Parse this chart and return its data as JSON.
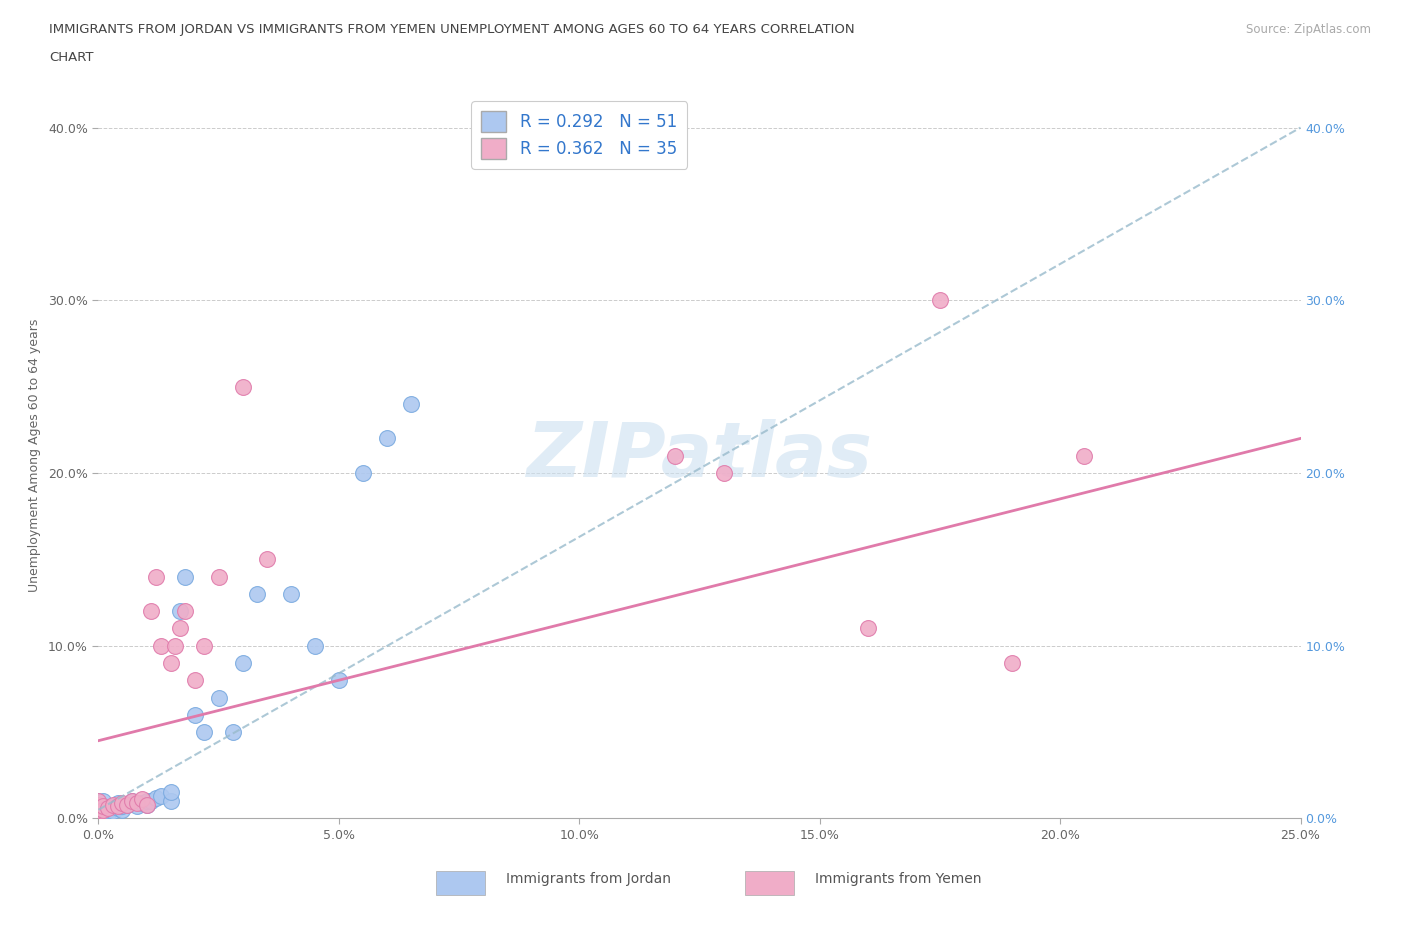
{
  "title_line1": "IMMIGRANTS FROM JORDAN VS IMMIGRANTS FROM YEMEN UNEMPLOYMENT AMONG AGES 60 TO 64 YEARS CORRELATION",
  "title_line2": "CHART",
  "source": "Source: ZipAtlas.com",
  "ylabel": "Unemployment Among Ages 60 to 64 years",
  "xlim": [
    0.0,
    0.25
  ],
  "ylim": [
    0.0,
    0.42
  ],
  "xticks": [
    0.0,
    0.05,
    0.1,
    0.15,
    0.2,
    0.25
  ],
  "xticklabels": [
    "0.0%",
    "5.0%",
    "10.0%",
    "15.0%",
    "20.0%",
    "25.0%"
  ],
  "yticks": [
    0.0,
    0.1,
    0.2,
    0.3,
    0.4
  ],
  "yticklabels": [
    "0.0%",
    "10.0%",
    "20.0%",
    "30.0%",
    "40.0%"
  ],
  "jordan_color": "#adc8f0",
  "jordan_edge": "#7aaae0",
  "jordan_R": 0.292,
  "jordan_N": 51,
  "jordan_line_color": "#7aaae0",
  "yemen_color": "#f0adc8",
  "yemen_edge": "#e07aaa",
  "yemen_R": 0.362,
  "yemen_N": 35,
  "yemen_line_color": "#e07aaa",
  "watermark": "ZIPatlas",
  "background_color": "#ffffff",
  "right_axis_color": "#5599dd",
  "jordan_line_intercept": 0.005,
  "jordan_line_slope": 1.58,
  "yemen_line_intercept": 0.045,
  "yemen_line_slope": 0.7,
  "jordan_x": [
    0.0,
    0.0,
    0.0,
    0.0,
    0.0,
    0.0,
    0.0,
    0.0,
    0.0,
    0.0,
    0.0,
    0.0,
    0.0,
    0.0,
    0.0,
    0.001,
    0.001,
    0.001,
    0.002,
    0.002,
    0.003,
    0.003,
    0.004,
    0.004,
    0.005,
    0.005,
    0.006,
    0.007,
    0.008,
    0.009,
    0.01,
    0.01,
    0.011,
    0.012,
    0.013,
    0.015,
    0.015,
    0.017,
    0.018,
    0.02,
    0.022,
    0.025,
    0.028,
    0.03,
    0.033,
    0.04,
    0.045,
    0.05,
    0.055,
    0.06,
    0.065
  ],
  "jordan_y": [
    0.0,
    0.0,
    0.0,
    0.0,
    0.0,
    0.0,
    0.001,
    0.002,
    0.003,
    0.004,
    0.005,
    0.006,
    0.007,
    0.008,
    0.01,
    0.005,
    0.007,
    0.01,
    0.003,
    0.005,
    0.004,
    0.007,
    0.006,
    0.009,
    0.005,
    0.007,
    0.008,
    0.01,
    0.007,
    0.009,
    0.008,
    0.01,
    0.01,
    0.012,
    0.013,
    0.01,
    0.015,
    0.12,
    0.14,
    0.06,
    0.05,
    0.07,
    0.05,
    0.09,
    0.13,
    0.13,
    0.1,
    0.08,
    0.2,
    0.22,
    0.24
  ],
  "yemen_x": [
    0.0,
    0.0,
    0.0,
    0.0,
    0.0,
    0.0,
    0.001,
    0.001,
    0.002,
    0.003,
    0.004,
    0.005,
    0.006,
    0.007,
    0.008,
    0.009,
    0.01,
    0.011,
    0.012,
    0.013,
    0.015,
    0.016,
    0.017,
    0.018,
    0.02,
    0.022,
    0.025,
    0.03,
    0.035,
    0.12,
    0.13,
    0.16,
    0.175,
    0.19,
    0.205
  ],
  "yemen_y": [
    0.003,
    0.005,
    0.006,
    0.007,
    0.008,
    0.01,
    0.005,
    0.007,
    0.006,
    0.008,
    0.007,
    0.009,
    0.008,
    0.01,
    0.009,
    0.011,
    0.008,
    0.12,
    0.14,
    0.1,
    0.09,
    0.1,
    0.11,
    0.12,
    0.08,
    0.1,
    0.14,
    0.25,
    0.15,
    0.21,
    0.2,
    0.11,
    0.3,
    0.09,
    0.21
  ]
}
